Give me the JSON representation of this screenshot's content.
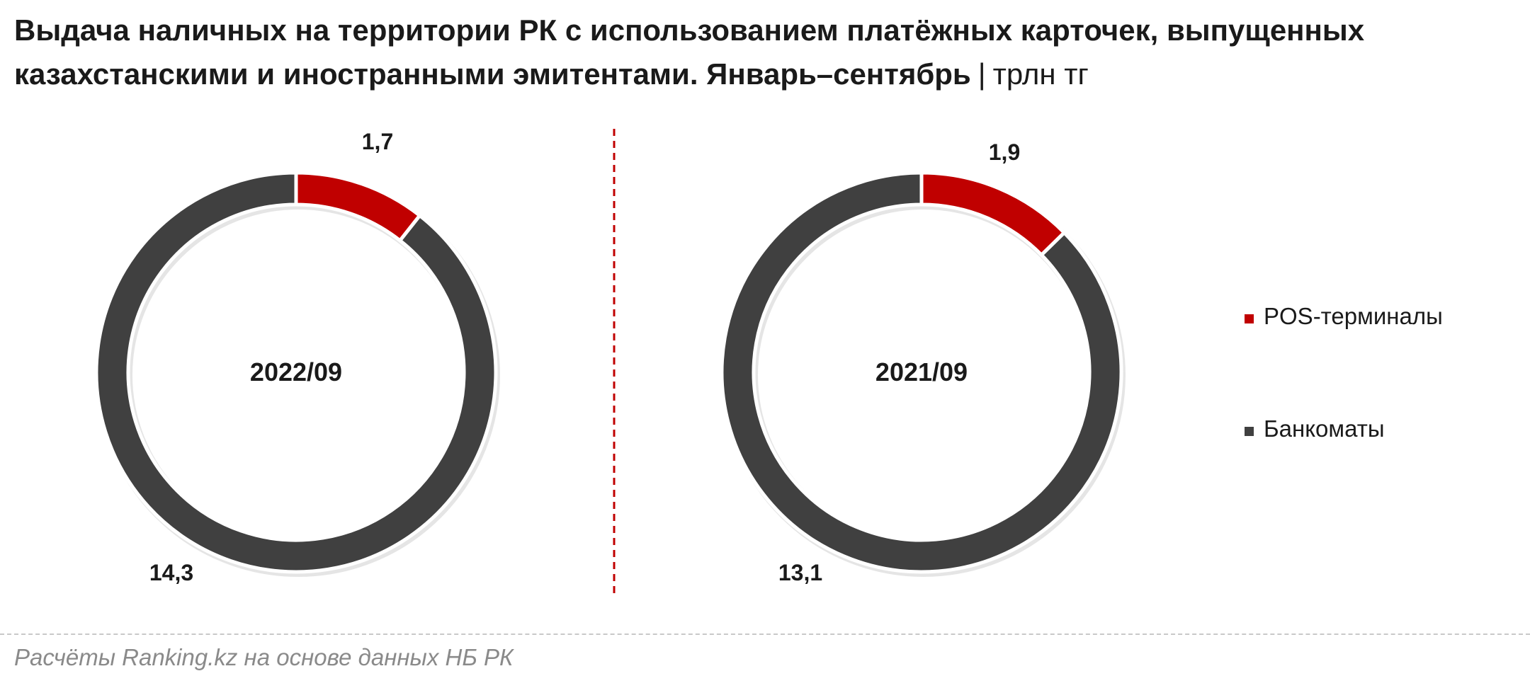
{
  "title": {
    "main": "Выдача наличных на территории РК с использованием платёжных карточек, выпущенных казахстанскими и иностранными эмитентами. Январь–сентябрь",
    "separator": "|",
    "unit": "трлн тг"
  },
  "source": "Расчёты Ranking.kz на основе данных НБ РК",
  "colors": {
    "pos": "#c00000",
    "atm": "#404040",
    "divider": "#c00000"
  },
  "chart_data": [
    {
      "type": "pie",
      "variant": "donut",
      "center_label": "2022/09",
      "categories": [
        "POS-терминалы",
        "Банкоматы"
      ],
      "values": [
        1.7,
        14.3
      ],
      "value_labels": [
        "1,7",
        "14,3"
      ],
      "colors": [
        "#c00000",
        "#404040"
      ]
    },
    {
      "type": "pie",
      "variant": "donut",
      "center_label": "2021/09",
      "categories": [
        "POS-терминалы",
        "Банкоматы"
      ],
      "values": [
        1.9,
        13.1
      ],
      "value_labels": [
        "1,9",
        "13,1"
      ],
      "colors": [
        "#c00000",
        "#404040"
      ]
    }
  ],
  "legend": {
    "position": "right",
    "items": [
      {
        "label": "POS-терминалы",
        "color": "#c00000"
      },
      {
        "label": "Банкоматы",
        "color": "#404040"
      }
    ]
  }
}
